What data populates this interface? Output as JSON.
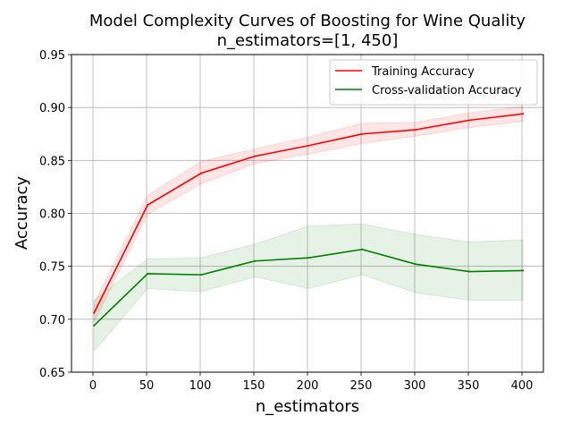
{
  "chart_data": {
    "type": "line",
    "title": "Model Complexity Curves of Boosting for Wine Quality",
    "subtitle": "n_estimators=[1, 450]",
    "xlabel": "n_estimators",
    "ylabel": "Accuracy",
    "xlim": [
      -20,
      420
    ],
    "ylim": [
      0.65,
      0.95
    ],
    "x_ticks": [
      0,
      50,
      100,
      150,
      200,
      250,
      300,
      350,
      400
    ],
    "y_ticks": [
      "0.65",
      "0.70",
      "0.75",
      "0.80",
      "0.85",
      "0.90",
      "0.95"
    ],
    "grid": true,
    "legend_position": "top-right",
    "x": [
      1,
      51,
      101,
      151,
      201,
      251,
      301,
      351,
      401
    ],
    "series": [
      {
        "name": "Training Accuracy",
        "color": "#ff0000",
        "values": [
          0.706,
          0.808,
          0.838,
          0.854,
          0.864,
          0.875,
          0.879,
          0.888,
          0.894
        ],
        "band_lower": [
          0.697,
          0.799,
          0.828,
          0.847,
          0.856,
          0.866,
          0.873,
          0.881,
          0.887
        ],
        "band_upper": [
          0.715,
          0.817,
          0.849,
          0.861,
          0.872,
          0.885,
          0.886,
          0.895,
          0.901
        ]
      },
      {
        "name": "Cross-validation Accuracy",
        "color": "#008000",
        "values": [
          0.694,
          0.743,
          0.742,
          0.755,
          0.758,
          0.766,
          0.752,
          0.745,
          0.746
        ],
        "band_lower": [
          0.67,
          0.729,
          0.726,
          0.74,
          0.729,
          0.742,
          0.725,
          0.718,
          0.718
        ],
        "band_upper": [
          0.718,
          0.757,
          0.758,
          0.771,
          0.788,
          0.79,
          0.78,
          0.773,
          0.775
        ]
      }
    ]
  }
}
